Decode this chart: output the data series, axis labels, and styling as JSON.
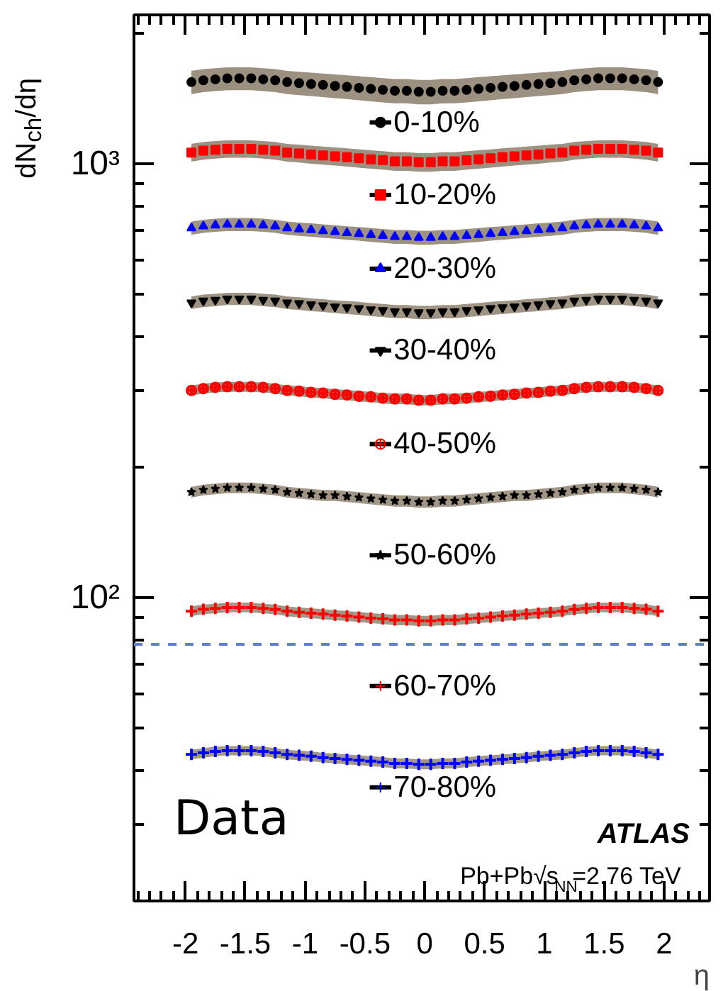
{
  "chart_data": {
    "type": "scatter",
    "ylabel": "dN$_{ch}$/dη",
    "xlabel": "η",
    "x": [
      -1.95,
      -1.85,
      -1.75,
      -1.65,
      -1.55,
      -1.45,
      -1.35,
      -1.25,
      -1.15,
      -1.05,
      -0.95,
      -0.85,
      -0.75,
      -0.65,
      -0.55,
      -0.45,
      -0.35,
      -0.25,
      -0.15,
      -0.05,
      0.05,
      0.15,
      0.25,
      0.35,
      0.45,
      0.55,
      0.65,
      0.75,
      0.85,
      0.95,
      1.05,
      1.15,
      1.25,
      1.35,
      1.45,
      1.55,
      1.65,
      1.75,
      1.85,
      1.95
    ],
    "log": "y",
    "xlim": [
      -2.43,
      2.38
    ],
    "ylim": [
      20,
      2200
    ],
    "xticks": [
      -2,
      -1.5,
      -1,
      -0.5,
      0,
      0.5,
      1,
      1.5,
      2,
      {
        "value": -2.4,
        "label": null
      },
      {
        "value": -2.3,
        "label": null
      },
      {
        "value": -2.2,
        "label": null
      },
      {
        "value": -2.1,
        "label": null
      },
      {
        "value": -1.9,
        "label": null
      },
      {
        "value": -1.8,
        "label": null
      },
      {
        "value": -1.7,
        "label": null
      },
      {
        "value": -1.6,
        "label": null
      },
      {
        "value": -1.4,
        "label": null
      },
      {
        "value": -1.3,
        "label": null
      },
      {
        "value": -1.2,
        "label": null
      },
      {
        "value": -1.1,
        "label": null
      },
      {
        "value": -0.9,
        "label": null
      },
      {
        "value": -0.8,
        "label": null
      },
      {
        "value": -0.7,
        "label": null
      },
      {
        "value": -0.6,
        "label": null
      },
      {
        "value": -0.4,
        "label": null
      },
      {
        "value": -0.3,
        "label": null
      },
      {
        "value": -0.2,
        "label": null
      },
      {
        "value": -0.1,
        "label": null
      },
      {
        "value": 0.1,
        "label": null
      },
      {
        "value": 0.2,
        "label": null
      },
      {
        "value": 0.3,
        "label": null
      },
      {
        "value": 0.4,
        "label": null
      },
      {
        "value": 0.6,
        "label": null
      },
      {
        "value": 0.7,
        "label": null
      },
      {
        "value": 0.8,
        "label": null
      },
      {
        "value": 0.9,
        "label": null
      },
      {
        "value": 1.1,
        "label": null
      },
      {
        "value": 1.2,
        "label": null
      },
      {
        "value": 1.3,
        "label": null
      },
      {
        "value": 1.4,
        "label": null
      },
      {
        "value": 1.6,
        "label": null
      },
      {
        "value": 1.7,
        "label": null
      },
      {
        "value": 1.8,
        "label": null
      },
      {
        "value": 1.9,
        "label": null
      },
      {
        "value": 2.1,
        "label": null
      },
      {
        "value": 2.2,
        "label": null
      },
      {
        "value": 2.3,
        "label": null
      }
    ],
    "yticks": [
      {
        "value": 100,
        "label": "10²"
      },
      {
        "value": 1000,
        "label": "10³"
      },
      {
        "value": 30,
        "label": null
      },
      {
        "value": 40,
        "label": null
      },
      {
        "value": 50,
        "label": null
      },
      {
        "value": 60,
        "label": null
      },
      {
        "value": 70,
        "label": null
      },
      {
        "value": 80,
        "label": null
      },
      {
        "value": 90,
        "label": null
      },
      {
        "value": 200,
        "label": null
      },
      {
        "value": 300,
        "label": null
      },
      {
        "value": 400,
        "label": null
      },
      {
        "value": 500,
        "label": null
      },
      {
        "value": 600,
        "label": null
      },
      {
        "value": 700,
        "label": null
      },
      {
        "value": 800,
        "label": null
      },
      {
        "value": 900,
        "label": null
      },
      {
        "value": 2000,
        "label": null
      }
    ],
    "grid": false,
    "legend": "center",
    "ref_lines": [
      {
        "axis": "y",
        "value": 78,
        "label": null,
        "color": "#5b7fd6",
        "line_style": "dashed"
      }
    ],
    "annotations": [
      "Data",
      "ATLAS",
      "Pb+Pb√s$_{NN}$=2.76 TeV"
    ],
    "series": [
      {
        "name": "0-10%",
        "color": "#000000",
        "marker": "circle",
        "values": [
          1540,
          1555,
          1563,
          1571,
          1571,
          1571,
          1563,
          1555,
          1540,
          1532,
          1525,
          1517,
          1509,
          1502,
          1494,
          1486,
          1478,
          1471,
          1471,
          1463,
          1463,
          1471,
          1471,
          1478,
          1486,
          1494,
          1502,
          1509,
          1517,
          1525,
          1532,
          1540,
          1555,
          1563,
          1571,
          1571,
          1571,
          1563,
          1555,
          1540
        ],
        "lower": [
          1445,
          1460,
          1468,
          1476,
          1476,
          1476,
          1468,
          1460,
          1445,
          1437,
          1430,
          1422,
          1414,
          1407,
          1399,
          1391,
          1383,
          1376,
          1376,
          1368,
          1368,
          1376,
          1376,
          1383,
          1391,
          1399,
          1407,
          1414,
          1422,
          1430,
          1437,
          1445,
          1460,
          1468,
          1476,
          1476,
          1476,
          1468,
          1460,
          1445
        ],
        "upper": [
          1635,
          1650,
          1658,
          1666,
          1666,
          1666,
          1658,
          1650,
          1635,
          1627,
          1620,
          1612,
          1604,
          1597,
          1589,
          1581,
          1573,
          1566,
          1566,
          1558,
          1558,
          1566,
          1566,
          1573,
          1581,
          1589,
          1597,
          1604,
          1612,
          1620,
          1627,
          1635,
          1650,
          1658,
          1666,
          1666,
          1666,
          1658,
          1650,
          1635
        ]
      },
      {
        "name": "10-20%",
        "color": "#ff0000",
        "marker": "square",
        "values": [
          1060,
          1071,
          1076,
          1081,
          1081,
          1081,
          1076,
          1071,
          1060,
          1055,
          1049,
          1044,
          1039,
          1034,
          1028,
          1023,
          1018,
          1012,
          1012,
          1007,
          1007,
          1012,
          1012,
          1018,
          1023,
          1028,
          1034,
          1039,
          1044,
          1049,
          1055,
          1060,
          1071,
          1076,
          1081,
          1081,
          1081,
          1076,
          1071,
          1060
        ],
        "lower": [
          1010,
          1021,
          1026,
          1031,
          1031,
          1031,
          1026,
          1021,
          1010,
          1005,
          999,
          994,
          989,
          984,
          978,
          973,
          968,
          962,
          962,
          957,
          957,
          962,
          962,
          968,
          973,
          978,
          984,
          989,
          994,
          999,
          1005,
          1010,
          1021,
          1026,
          1031,
          1031,
          1031,
          1026,
          1021,
          1010
        ],
        "upper": [
          1110,
          1121,
          1126,
          1131,
          1131,
          1131,
          1126,
          1121,
          1110,
          1105,
          1099,
          1094,
          1089,
          1084,
          1078,
          1073,
          1068,
          1062,
          1062,
          1057,
          1057,
          1062,
          1062,
          1068,
          1073,
          1078,
          1084,
          1089,
          1094,
          1099,
          1105,
          1110,
          1121,
          1126,
          1131,
          1131,
          1131,
          1126,
          1121,
          1110
        ]
      },
      {
        "name": "20-30%",
        "color": "#0000ff",
        "marker": "triangle",
        "values": [
          710,
          717,
          721,
          724,
          724,
          724,
          721,
          717,
          710,
          706,
          703,
          699,
          696,
          692,
          689,
          685,
          682,
          678,
          678,
          675,
          675,
          678,
          678,
          682,
          685,
          689,
          692,
          696,
          699,
          703,
          706,
          710,
          717,
          721,
          724,
          724,
          724,
          721,
          717,
          710
        ],
        "lower": [
          685,
          692,
          696,
          699,
          699,
          699,
          696,
          692,
          685,
          681,
          678,
          674,
          671,
          667,
          664,
          660,
          657,
          653,
          653,
          650,
          650,
          653,
          653,
          657,
          660,
          664,
          667,
          671,
          674,
          678,
          681,
          685,
          692,
          696,
          699,
          699,
          699,
          696,
          692,
          685
        ],
        "upper": [
          735,
          742,
          746,
          749,
          749,
          749,
          746,
          742,
          735,
          731,
          728,
          724,
          721,
          717,
          714,
          710,
          707,
          703,
          703,
          700,
          700,
          703,
          703,
          707,
          710,
          714,
          717,
          721,
          724,
          728,
          731,
          735,
          742,
          746,
          749,
          749,
          749,
          746,
          742,
          735
        ]
      },
      {
        "name": "30-40%",
        "color": "#000000",
        "marker": "triangle",
        "values": [
          478,
          483,
          485,
          488,
          488,
          488,
          485,
          483,
          478,
          476,
          473,
          471,
          468,
          466,
          464,
          461,
          459,
          456,
          456,
          454,
          454,
          456,
          456,
          459,
          461,
          464,
          466,
          468,
          471,
          473,
          476,
          478,
          483,
          485,
          488,
          488,
          488,
          485,
          483,
          478
        ],
        "lower": [
          462,
          467,
          469,
          472,
          472,
          472,
          469,
          467,
          462,
          460,
          457,
          455,
          452,
          450,
          448,
          445,
          443,
          440,
          440,
          438,
          438,
          440,
          440,
          443,
          445,
          448,
          450,
          452,
          455,
          457,
          460,
          462,
          467,
          469,
          472,
          472,
          472,
          469,
          467,
          462
        ],
        "upper": [
          494,
          499,
          501,
          504,
          504,
          504,
          501,
          499,
          494,
          492,
          489,
          487,
          484,
          482,
          480,
          477,
          475,
          472,
          472,
          470,
          470,
          472,
          472,
          475,
          477,
          480,
          482,
          484,
          487,
          489,
          492,
          494,
          499,
          501,
          504,
          504,
          504,
          501,
          499,
          494
        ]
      },
      {
        "name": "40-50%",
        "color": "#ff0000",
        "marker": "circle_cross",
        "values": [
          300,
          303,
          305,
          306,
          306,
          306,
          305,
          303,
          300,
          299,
          297,
          296,
          294,
          293,
          291,
          290,
          288,
          287,
          287,
          285,
          285,
          287,
          287,
          288,
          290,
          291,
          293,
          294,
          296,
          297,
          299,
          300,
          303,
          305,
          306,
          306,
          306,
          305,
          303,
          300
        ],
        "lower": [
          292,
          295,
          297,
          298,
          298,
          298,
          297,
          295,
          292,
          291,
          289,
          288,
          286,
          285,
          283,
          282,
          280,
          279,
          279,
          277,
          277,
          279,
          279,
          280,
          282,
          283,
          285,
          286,
          288,
          289,
          291,
          292,
          295,
          297,
          298,
          298,
          298,
          297,
          295,
          292
        ],
        "upper": [
          308,
          311,
          313,
          314,
          314,
          314,
          313,
          311,
          308,
          307,
          305,
          304,
          302,
          301,
          299,
          298,
          296,
          295,
          295,
          293,
          293,
          295,
          295,
          296,
          298,
          299,
          301,
          302,
          304,
          305,
          307,
          308,
          311,
          313,
          314,
          314,
          314,
          313,
          311,
          308
        ]
      },
      {
        "name": "50-60%",
        "color": "#000000",
        "marker": "star",
        "values": [
          175,
          177,
          178,
          179,
          179,
          179,
          178,
          177,
          175,
          174,
          173,
          172,
          172,
          171,
          170,
          169,
          168,
          167,
          167,
          166,
          166,
          167,
          167,
          168,
          169,
          170,
          171,
          172,
          172,
          173,
          174,
          175,
          177,
          178,
          179,
          179,
          179,
          178,
          177,
          175
        ],
        "lower": [
          170,
          172,
          173,
          174,
          174,
          174,
          173,
          172,
          170,
          169,
          168,
          167,
          167,
          166,
          165,
          164,
          163,
          162,
          162,
          161,
          161,
          162,
          162,
          163,
          164,
          165,
          166,
          167,
          167,
          168,
          169,
          170,
          172,
          173,
          174,
          174,
          174,
          173,
          172,
          170
        ],
        "upper": [
          180,
          182,
          183,
          184,
          184,
          184,
          183,
          182,
          180,
          179,
          178,
          177,
          177,
          176,
          175,
          174,
          173,
          172,
          172,
          171,
          171,
          172,
          172,
          173,
          174,
          175,
          176,
          177,
          177,
          178,
          179,
          180,
          182,
          183,
          184,
          184,
          184,
          183,
          182,
          180
        ]
      },
      {
        "name": "60-70%",
        "color": "#ff0000",
        "marker": "cross",
        "values": [
          93,
          94,
          94.4,
          94.9,
          94.9,
          94.9,
          94.4,
          93.9,
          93,
          92.5,
          92.1,
          91.6,
          91.1,
          90.7,
          90.2,
          89.7,
          89.3,
          88.8,
          88.8,
          88.4,
          88.4,
          88.8,
          88.8,
          89.3,
          89.7,
          90.2,
          90.7,
          91.1,
          91.6,
          92.1,
          92.5,
          93,
          93.9,
          94.4,
          94.9,
          94.9,
          94.9,
          94.4,
          94,
          93
        ],
        "lower": [
          90.6,
          91.6,
          92,
          92.5,
          92.5,
          92.5,
          92,
          91.5,
          90.6,
          90.1,
          89.7,
          89.2,
          88.7,
          88.3,
          87.8,
          87.3,
          86.9,
          86.4,
          86.4,
          86,
          86,
          86.4,
          86.4,
          86.9,
          87.3,
          87.8,
          88.3,
          88.7,
          89.2,
          89.7,
          90.1,
          90.6,
          91.5,
          92,
          92.5,
          92.5,
          92.5,
          92,
          91.6,
          90.6
        ],
        "upper": [
          95.4,
          96.4,
          96.8,
          97.3,
          97.3,
          97.3,
          96.8,
          96.3,
          95.4,
          94.9,
          94.5,
          94,
          93.5,
          93.1,
          92.6,
          92.1,
          91.7,
          91.2,
          91.2,
          90.8,
          90.8,
          91.2,
          91.2,
          91.7,
          92.1,
          92.6,
          93.1,
          93.5,
          94,
          94.5,
          94.9,
          95.4,
          96.3,
          96.8,
          97.3,
          97.3,
          97.3,
          96.8,
          96.4,
          95.4
        ]
      },
      {
        "name": "70-80%",
        "color": "#0000ff",
        "marker": "cross",
        "values": [
          43.5,
          43.9,
          44.2,
          44.4,
          44.4,
          44.4,
          44.2,
          43.9,
          43.5,
          43.3,
          43.1,
          42.8,
          42.6,
          42.4,
          42.2,
          42,
          41.8,
          41.5,
          41.5,
          41.3,
          41.3,
          41.5,
          41.5,
          41.8,
          42,
          42.2,
          42.4,
          42.6,
          42.8,
          43.1,
          43.3,
          43.5,
          43.9,
          44.2,
          44.4,
          44.4,
          44.4,
          44.2,
          43.9,
          43.5
        ],
        "lower": [
          42.4,
          42.8,
          43.1,
          43.3,
          43.3,
          43.3,
          43.1,
          42.8,
          42.4,
          42.2,
          42,
          41.7,
          41.5,
          41.3,
          41.1,
          40.9,
          40.7,
          40.4,
          40.4,
          40.2,
          40.2,
          40.4,
          40.4,
          40.7,
          40.9,
          41.1,
          41.3,
          41.5,
          41.7,
          42,
          42.2,
          42.4,
          42.8,
          43.1,
          43.3,
          43.3,
          43.3,
          43.1,
          42.8,
          42.4
        ],
        "upper": [
          44.6,
          45,
          45.3,
          45.5,
          45.5,
          45.5,
          45.3,
          45,
          44.6,
          44.4,
          44.2,
          43.9,
          43.7,
          43.5,
          43.3,
          43.1,
          42.9,
          42.6,
          42.6,
          42.4,
          42.4,
          42.6,
          42.6,
          42.9,
          43.1,
          43.3,
          43.5,
          43.7,
          43.9,
          44.2,
          44.4,
          44.6,
          45,
          45.3,
          45.5,
          45.5,
          45.5,
          45.3,
          45,
          44.6
        ]
      }
    ]
  }
}
